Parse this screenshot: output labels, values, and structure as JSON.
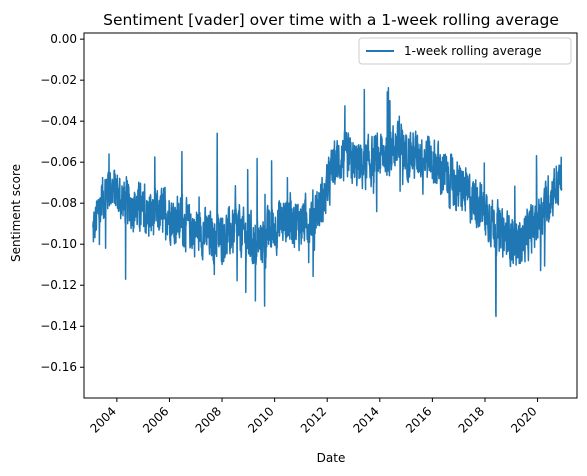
{
  "chart_data": {
    "type": "line",
    "title": "Sentiment [vader] over time with a 1-week rolling average",
    "xlabel": "Date",
    "ylabel": "Sentiment score",
    "x_range": [
      "2002-10-01",
      "2021-07-01"
    ],
    "ylim": [
      -0.175,
      0.003
    ],
    "x_ticks": [
      "2004",
      "2006",
      "2008",
      "2010",
      "2012",
      "2014",
      "2016",
      "2018",
      "2020"
    ],
    "y_ticks": [
      "0.00",
      "−0.02",
      "−0.04",
      "−0.06",
      "−0.08",
      "−0.10",
      "−0.12",
      "−0.14",
      "−0.16"
    ],
    "y_tick_values": [
      0.0,
      -0.02,
      -0.04,
      -0.06,
      -0.08,
      -0.1,
      -0.12,
      -0.14,
      -0.16
    ],
    "legend_position": "top-right",
    "grid": false,
    "series": [
      {
        "name": "1-week rolling average",
        "color": "#1f77b4",
        "x": [
          "2003-02",
          "2003-06",
          "2003-09",
          "2003-12",
          "2004-04",
          "2004-08",
          "2004-12",
          "2005-04",
          "2005-08",
          "2005-12",
          "2006-04",
          "2006-08",
          "2006-12",
          "2007-04",
          "2007-08",
          "2007-12",
          "2008-04",
          "2008-08",
          "2008-12",
          "2009-04",
          "2009-08",
          "2009-12",
          "2010-04",
          "2010-08",
          "2010-12",
          "2011-04",
          "2011-08",
          "2011-12",
          "2012-04",
          "2012-08",
          "2012-12",
          "2013-04",
          "2013-08",
          "2013-12",
          "2014-04",
          "2014-08",
          "2014-12",
          "2015-04",
          "2015-08",
          "2015-12",
          "2016-04",
          "2016-08",
          "2016-12",
          "2017-04",
          "2017-08",
          "2017-12",
          "2018-04",
          "2018-08",
          "2018-12",
          "2019-04",
          "2019-08",
          "2019-12",
          "2020-04",
          "2020-08",
          "2020-12"
        ],
        "values": [
          -0.095,
          -0.078,
          -0.072,
          -0.074,
          -0.079,
          -0.081,
          -0.084,
          -0.086,
          -0.085,
          -0.084,
          -0.088,
          -0.09,
          -0.093,
          -0.094,
          -0.096,
          -0.097,
          -0.095,
          -0.093,
          -0.096,
          -0.1,
          -0.098,
          -0.093,
          -0.089,
          -0.087,
          -0.09,
          -0.088,
          -0.084,
          -0.078,
          -0.061,
          -0.058,
          -0.06,
          -0.062,
          -0.06,
          -0.058,
          -0.055,
          -0.052,
          -0.054,
          -0.057,
          -0.056,
          -0.058,
          -0.063,
          -0.068,
          -0.072,
          -0.075,
          -0.078,
          -0.082,
          -0.088,
          -0.094,
          -0.097,
          -0.1,
          -0.096,
          -0.09,
          -0.082,
          -0.074,
          -0.068
        ]
      }
    ]
  }
}
